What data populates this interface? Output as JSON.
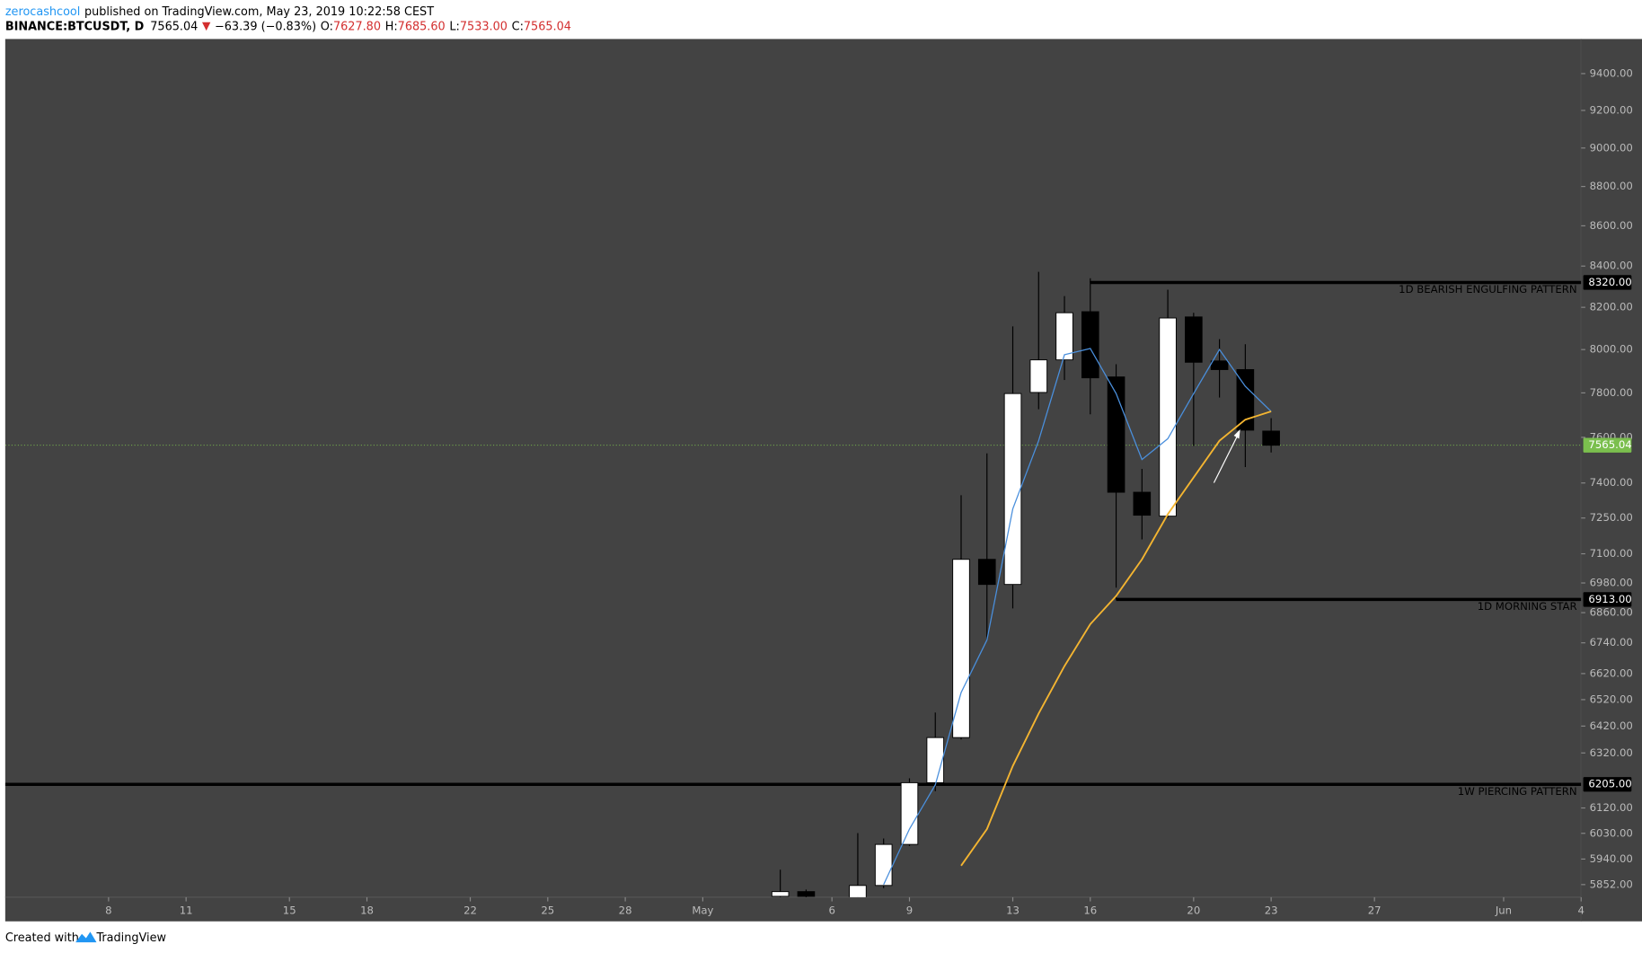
{
  "header": {
    "author": "zerocashcool",
    "published": "published on TradingView.com, May 23, 2019 10:22:58 CEST"
  },
  "footer": {
    "created": "Created with",
    "brand": "TradingView"
  },
  "chart_data": {
    "type": "candlestick",
    "legend": {
      "symbol": "BINANCE:BTCUSDT, D",
      "last": "7565.04",
      "change": "−63.39 (−0.83%)",
      "ohlc": [
        {
          "name": "O:",
          "value": "7627.80"
        },
        {
          "name": "H:",
          "value": "7685.60"
        },
        {
          "name": "L:",
          "value": "7533.00"
        },
        {
          "name": "C:",
          "value": "7565.04"
        }
      ]
    },
    "log_scale": true,
    "grid": false,
    "background": "#434343",
    "up_color": "#ffffff",
    "down_color": "#000000",
    "xlim": [
      "2019-04-04",
      "2019-06-04"
    ],
    "xticks": [
      {
        "value": "2019-04-08",
        "label": "8"
      },
      {
        "value": "2019-04-11",
        "label": "11"
      },
      {
        "value": "2019-04-15",
        "label": "15"
      },
      {
        "value": "2019-04-18",
        "label": "18"
      },
      {
        "value": "2019-04-22",
        "label": "22"
      },
      {
        "value": "2019-04-25",
        "label": "25"
      },
      {
        "value": "2019-04-28",
        "label": "28"
      },
      {
        "value": "2019-05-01",
        "label": "May"
      },
      {
        "value": "2019-05-06",
        "label": "6"
      },
      {
        "value": "2019-05-09",
        "label": "9"
      },
      {
        "value": "2019-05-13",
        "label": "13"
      },
      {
        "value": "2019-05-16",
        "label": "16"
      },
      {
        "value": "2019-05-20",
        "label": "20"
      },
      {
        "value": "2019-05-23",
        "label": "23"
      },
      {
        "value": "2019-05-27",
        "label": "27"
      },
      {
        "value": "2019-06-01",
        "label": "Jun"
      },
      {
        "value": "2019-06-04",
        "label": "4"
      }
    ],
    "ylim": [
      5809,
      9592
    ],
    "yticks": [
      {
        "value": 9400,
        "label": "9400.00"
      },
      {
        "value": 9200,
        "label": "9200.00"
      },
      {
        "value": 9000,
        "label": "9000.00"
      },
      {
        "value": 8800,
        "label": "8800.00"
      },
      {
        "value": 8600,
        "label": "8600.00"
      },
      {
        "value": 8400,
        "label": "8400.00"
      },
      {
        "value": 8200,
        "label": "8200.00"
      },
      {
        "value": 8000,
        "label": "8000.00"
      },
      {
        "value": 7800,
        "label": "7800.00"
      },
      {
        "value": 7600,
        "label": "7600.00"
      },
      {
        "value": 7400,
        "label": "7400.00"
      },
      {
        "value": 7250,
        "label": "7250.00"
      },
      {
        "value": 7100,
        "label": "7100.00"
      },
      {
        "value": 6980,
        "label": "6980.00"
      },
      {
        "value": 6860,
        "label": "6860.00"
      },
      {
        "value": 6740,
        "label": "6740.00"
      },
      {
        "value": 6620,
        "label": "6620.00"
      },
      {
        "value": 6520,
        "label": "6520.00"
      },
      {
        "value": 6420,
        "label": "6420.00"
      },
      {
        "value": 6320,
        "label": "6320.00"
      },
      {
        "value": 6120,
        "label": "6120.00"
      },
      {
        "value": 6030,
        "label": "6030.00"
      },
      {
        "value": 5940,
        "label": "5940.00"
      },
      {
        "value": 5852,
        "label": "5852.00"
      }
    ],
    "x": [
      "2019-05-04",
      "2019-05-05",
      "2019-05-07",
      "2019-05-08",
      "2019-05-09",
      "2019-05-10",
      "2019-05-11",
      "2019-05-12",
      "2019-05-13",
      "2019-05-14",
      "2019-05-15",
      "2019-05-16",
      "2019-05-17",
      "2019-05-18",
      "2019-05-19",
      "2019-05-20",
      "2019-05-21",
      "2019-05-22",
      "2019-05-23"
    ],
    "open": [
      5812,
      5828,
      5805,
      5849,
      5991,
      6211,
      6377,
      7077,
      6974,
      7802,
      7952,
      8179,
      7873,
      7360,
      7258,
      8154,
      7947,
      7907,
      7627.8
    ],
    "high": [
      5903,
      5835,
      6031,
      6012,
      6227,
      6471,
      7347,
      7529,
      8109,
      8372,
      8254,
      8326,
      7932,
      7461,
      8285,
      8174,
      8049,
      8025,
      7685.6
    ],
    "low": [
      5800,
      5800,
      5800,
      5840,
      5985,
      6180,
      6370,
      6751,
      6877,
      7726,
      7859,
      7703,
      6961,
      7160,
      7250,
      7562,
      7779,
      7469,
      7533
    ],
    "close": [
      5828,
      5812,
      5849,
      5991,
      6211,
      6377,
      7077,
      6974,
      7797,
      7952,
      8174,
      7869,
      7360,
      7262,
      8149,
      7941,
      7907,
      7632,
      7565.04
    ],
    "series": [
      {
        "color": "#4a8fdc",
        "x": [
          "2019-05-08",
          "2019-05-09",
          "2019-05-10",
          "2019-05-11",
          "2019-05-12",
          "2019-05-13",
          "2019-05-14",
          "2019-05-15",
          "2019-05-16",
          "2019-05-17",
          "2019-05-18",
          "2019-05-19",
          "2019-05-20",
          "2019-05-21",
          "2019-05-22",
          "2019-05-23"
        ],
        "values": [
          5852,
          6045,
          6203,
          6547,
          6751,
          7289,
          7585,
          7976,
          8005,
          7797,
          7502,
          7594,
          7797,
          8000,
          7830,
          7716
        ]
      },
      {
        "color": "#f4b531",
        "x": [
          "2019-05-11",
          "2019-05-12",
          "2019-05-13",
          "2019-05-14",
          "2019-05-15",
          "2019-05-16",
          "2019-05-17",
          "2019-05-18",
          "2019-05-19",
          "2019-05-20",
          "2019-05-21",
          "2019-05-22",
          "2019-05-23"
        ],
        "values": [
          5917,
          6045,
          6272,
          6467,
          6649,
          6814,
          6927,
          7077,
          7266,
          7424,
          7585,
          7679,
          7716
        ]
      }
    ],
    "levels": [
      {
        "value": 8320,
        "label": "8320.00",
        "text": "1D BEARISH ENGULFING PATTERN",
        "start": "2019-05-16"
      },
      {
        "value": 6913,
        "label": "6913.00",
        "text": "1D MORNING STAR",
        "start": "2019-05-17"
      },
      {
        "value": 6205,
        "label": "6205.00",
        "text": "1W PIERCING PATTERN"
      }
    ],
    "last_price": {
      "value": 7565.04,
      "label": "7565.04",
      "color": "#7bbf4e"
    }
  }
}
